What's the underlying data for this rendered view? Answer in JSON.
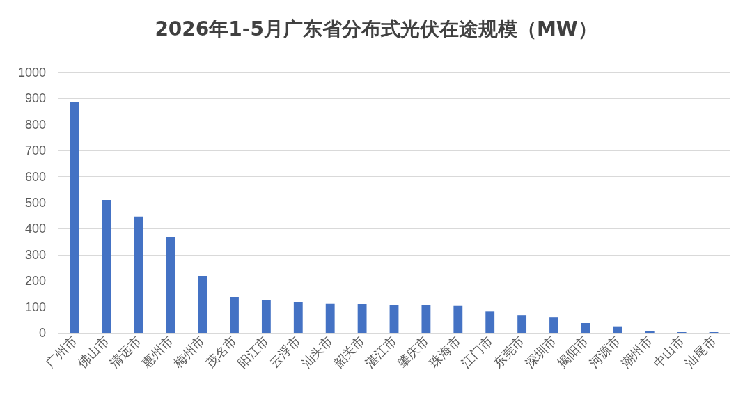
{
  "chart_data": {
    "type": "bar",
    "title": "2026年1-5月广东省分布式光伏在途规模（MW）",
    "categories": [
      "广州市",
      "佛山市",
      "清远市",
      "惠州市",
      "梅州市",
      "茂名市",
      "阳江市",
      "云浮市",
      "汕头市",
      "韶关市",
      "湛江市",
      "肇庆市",
      "珠海市",
      "江门市",
      "东莞市",
      "深圳市",
      "揭阳市",
      "河源市",
      "潮州市",
      "中山市",
      "汕尾市"
    ],
    "values": [
      885,
      511,
      447,
      369,
      219,
      139,
      126,
      118,
      113,
      110,
      107,
      107,
      105,
      82,
      69,
      61,
      38,
      25,
      8,
      3,
      3
    ],
    "color": "#4472c4",
    "ylim": [
      0,
      1000
    ],
    "yticks": [
      0,
      100,
      200,
      300,
      400,
      500,
      600,
      700,
      800,
      900,
      1000
    ],
    "grid": "y"
  }
}
